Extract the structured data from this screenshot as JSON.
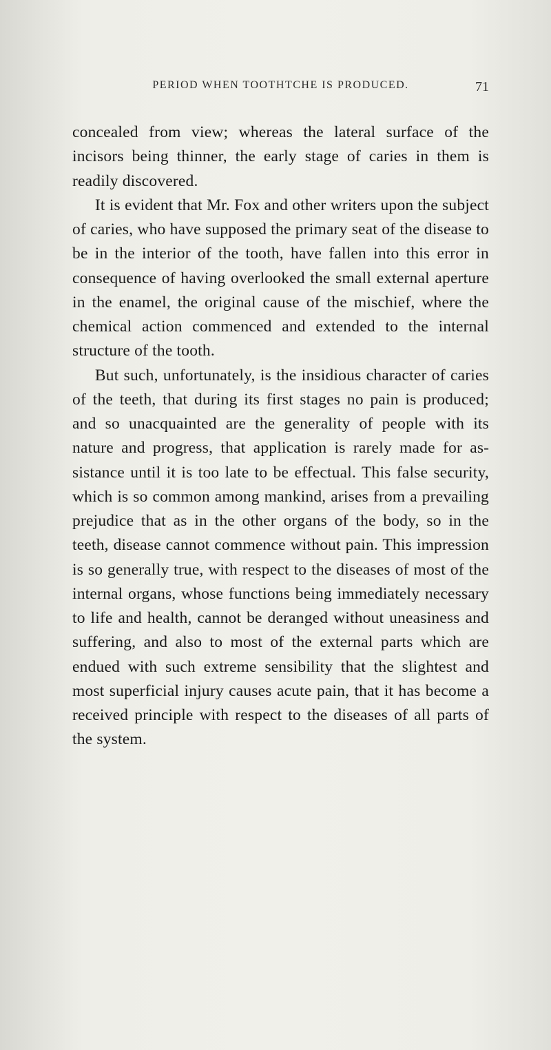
{
  "header": {
    "running_title": "PERIOD WHEN TOOTHTCHE IS PRODUCED.",
    "page_number": "71"
  },
  "paragraphs": [
    "concealed from view; whereas the lateral sur­face of the incisors being thinner, the early stage of caries in them is readily discovered.",
    "It is evident that Mr. Fox and other writers upon the subject of caries, who have supposed the primary seat of the disease to be in the in­terior of the tooth, have fallen into this error in consequence of having overlooked the small ex­ternal aperture in the enamel, the original cause of the mischief, where the chemical action commenced and extended to the internal struc­ture of the tooth.",
    "But such, unfortunately, is the insidious char­acter of caries of the teeth, that during its first stages no pain is produced; and so unacquainted are the generality of people with its nature and progress, that application is rarely made for as­sistance until it is too late to be effectual. This false security, which is so common among man­kind, arises from a prevailing prejudice that as in the other organs of the body, so in the teeth, disease cannot commence without pain. This impression is so generally true, with respect to the diseases of most of the internal organs, whose functions being immediately necessary to life and health, cannot be deranged without un­easiness and suffering, and also to most of the external parts which are endued with such ex­treme sensibility that the slightest and most superficial injury causes acute pain, that it has become a received principle with respect to the diseases of all parts of the system."
  ],
  "colors": {
    "background": "#e8e8e4",
    "text": "#1a1a1a",
    "header_text": "#2a2a2a"
  },
  "typography": {
    "body_fontsize": 23.5,
    "header_fontsize": 16,
    "line_height": 1.5,
    "font_family": "Georgia, Times New Roman, serif"
  }
}
